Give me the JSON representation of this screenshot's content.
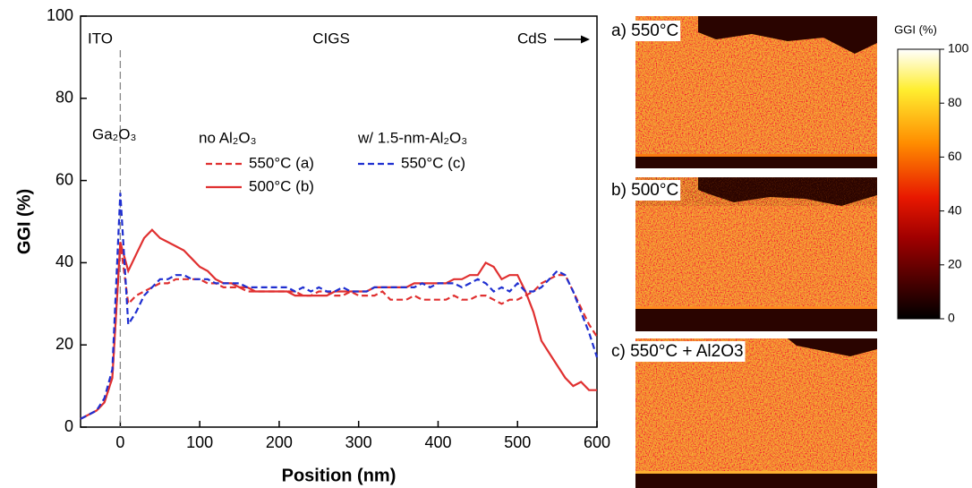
{
  "chart_data": [
    {
      "type": "line",
      "xlabel": "Position (nm)",
      "ylabel": "GGI (%)",
      "xlim": [
        -50,
        600
      ],
      "xticks": [
        0,
        100,
        200,
        300,
        400,
        500,
        600
      ],
      "ylim": [
        0,
        100
      ],
      "yticks": [
        0,
        20,
        40,
        60,
        80,
        100
      ],
      "vline": 0,
      "annotations": [
        "ITO",
        "CIGS",
        "CdS",
        "Ga₂O₃"
      ],
      "legend_groups": [
        "no Al₂O₃",
        "w/ 1.5-nm-Al₂O₃"
      ],
      "x": [
        -50,
        -40,
        -30,
        -20,
        -10,
        0,
        10,
        20,
        30,
        40,
        50,
        60,
        70,
        80,
        90,
        100,
        110,
        120,
        130,
        140,
        150,
        160,
        170,
        180,
        190,
        200,
        210,
        220,
        230,
        240,
        250,
        260,
        270,
        280,
        290,
        300,
        310,
        320,
        330,
        340,
        350,
        360,
        370,
        380,
        390,
        400,
        410,
        420,
        430,
        440,
        450,
        460,
        470,
        480,
        490,
        500,
        510,
        520,
        530,
        540,
        550,
        560,
        570,
        580,
        590,
        600
      ],
      "series": [
        {
          "name": "550°C (a)",
          "color": "#e03030",
          "linestyle": "dashed",
          "values": [
            2,
            3,
            4,
            6,
            12,
            45,
            30,
            32,
            33,
            34,
            35,
            35,
            36,
            36,
            36,
            36,
            35,
            35,
            34,
            34,
            34,
            33,
            33,
            33,
            33,
            33,
            33,
            33,
            32,
            32,
            33,
            33,
            32,
            32,
            33,
            32,
            32,
            32,
            33,
            31,
            31,
            31,
            32,
            31,
            31,
            31,
            31,
            32,
            31,
            31,
            32,
            32,
            31,
            30,
            31,
            31,
            32,
            33,
            35,
            36,
            37,
            37,
            33,
            29,
            25,
            22
          ]
        },
        {
          "name": "500°C (b)",
          "color": "#e03030",
          "linestyle": "solid",
          "values": [
            2,
            3,
            4,
            6,
            12,
            45,
            38,
            42,
            46,
            48,
            46,
            45,
            44,
            43,
            41,
            39,
            38,
            36,
            35,
            35,
            34,
            34,
            33,
            33,
            33,
            33,
            33,
            32,
            32,
            32,
            32,
            32,
            33,
            33,
            33,
            33,
            33,
            34,
            34,
            34,
            34,
            34,
            35,
            35,
            35,
            35,
            35,
            36,
            36,
            37,
            37,
            40,
            39,
            36,
            37,
            37,
            33,
            28,
            21,
            18,
            15,
            12,
            10,
            11,
            9,
            9
          ]
        },
        {
          "name": "550°C (c)",
          "color": "#1f2fd0",
          "linestyle": "dashed",
          "values": [
            2,
            3,
            4,
            7,
            14,
            57,
            25,
            28,
            32,
            34,
            36,
            36,
            37,
            37,
            36,
            36,
            36,
            35,
            35,
            35,
            35,
            34,
            34,
            34,
            34,
            34,
            34,
            33,
            34,
            33,
            34,
            33,
            33,
            34,
            33,
            33,
            33,
            34,
            34,
            34,
            34,
            34,
            34,
            35,
            34,
            35,
            35,
            35,
            34,
            35,
            36,
            35,
            33,
            34,
            33,
            35,
            33,
            33,
            34,
            36,
            38,
            37,
            33,
            28,
            23,
            17
          ]
        }
      ]
    },
    {
      "type": "colorbar",
      "title": "GGI (%)",
      "ylim": [
        0,
        100
      ],
      "yticks": [
        0,
        20,
        40,
        60,
        80,
        100
      ]
    }
  ],
  "panels": [
    "a) 550°C",
    "b) 500°C",
    "c) 550°C + Al2O3"
  ]
}
